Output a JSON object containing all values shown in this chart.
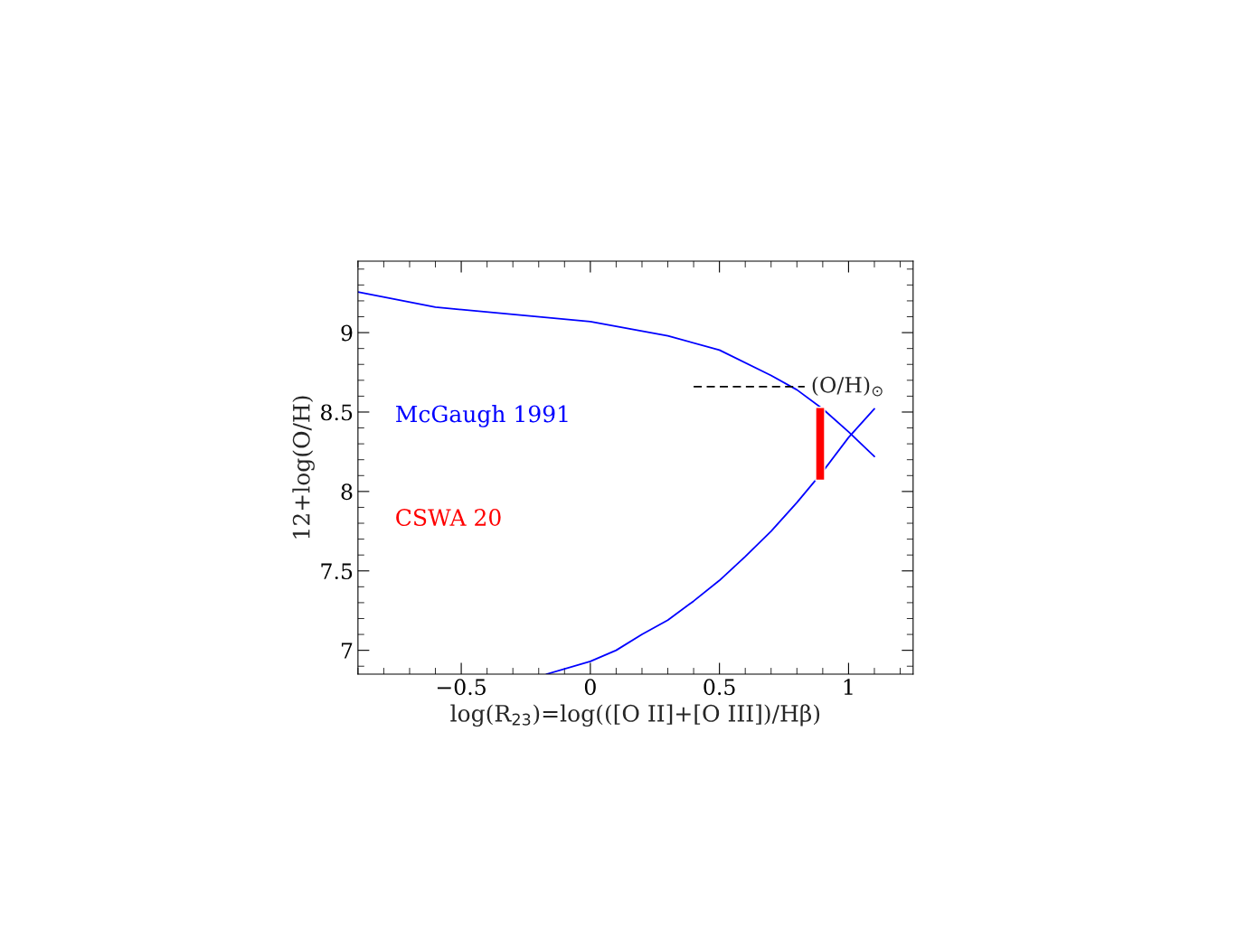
{
  "chart_data": {
    "type": "line",
    "xlabel": "log(R$_{23}$)=log(([O II]+[O III])/Hβ)",
    "ylabel": "12+log(O/H)",
    "xlim": [
      -0.9,
      1.25
    ],
    "ylim": [
      6.85,
      9.45
    ],
    "xticks": [
      {
        "value": -0.5,
        "label": "−0.5"
      },
      0,
      0.5,
      1
    ],
    "yticks": [
      7,
      7.5,
      8,
      8.5,
      9
    ],
    "legend": "left",
    "series": [
      {
        "name": "McGaugh 1991",
        "color": "#0000ff",
        "x": [
          -0.9,
          -0.6,
          0,
          0.3,
          0.5,
          0.7,
          0.8,
          0.9,
          1.0,
          1.1
        ],
        "values": [
          9.256,
          9.16,
          9.07,
          8.98,
          8.89,
          8.73,
          8.64,
          8.52,
          8.375,
          8.22
        ]
      },
      {
        "color": "#0000ff",
        "x": [
          -0.17,
          0,
          0.1,
          0.2,
          0.3,
          0.4,
          0.5,
          0.6,
          0.7,
          0.8,
          0.9,
          1.0,
          1.1
        ],
        "values": [
          6.85,
          6.93,
          7.0,
          7.1,
          7.19,
          7.31,
          7.44,
          7.59,
          7.75,
          7.93,
          8.125,
          8.34,
          8.52
        ]
      },
      {
        "name": "CSWA 20",
        "type": "bar",
        "color": "#ff0000",
        "x": [
          0.89
        ],
        "base": [
          8.07
        ],
        "values": [
          0.46
        ]
      },
      {
        "color": "#000000",
        "line_style": "dashed",
        "x": [
          0.4,
          0.83
        ],
        "values": [
          8.66,
          8.66
        ]
      }
    ],
    "annotations": [
      {
        "text": "(O/H)$_{⊙}$",
        "x": 0.83,
        "y": 8.66
      }
    ]
  }
}
